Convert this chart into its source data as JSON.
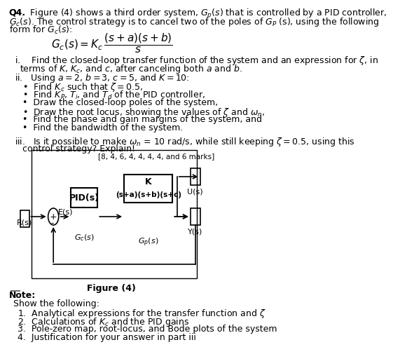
{
  "title_text": "Q4.  Figure (4) shows a third order system, $G_p(s)$ that is controlled by a PID controller,\n$G_c(s)$. The control strategy is to cancel two of the poles of $G_P$ (s), using the following\nform for $G_c(s)$:",
  "formula": "$G_c(s) = K_c \\dfrac{(s+a)(s+b)}{s}$",
  "part_i": "i.    Find the closed-loop transfer function of the system and an expression for $\\zeta$, in\n       terms of $K$, $K_c$, and $c$, after canceling both $a$ and $b$.",
  "part_ii": "ii.   Using $a = 2$, $b = 3$, $c = 5$, and $K = 10$:",
  "bullets_ii": [
    "Find $K_c$ such that $\\zeta = 0.5$,",
    "Find $K_P$, $T_i$, and $T_d$ of the PID controller,",
    "Draw the closed-loop poles of the system,",
    "Draw the root locus, showing the values of $\\zeta$ and $\\omega_n$,",
    "Find the phase and gain margins of the system, and",
    "Find the bandwidth of the system."
  ],
  "part_iii": "iii.   Is it possible to make $\\omega_n$ = 10 rad/s, while still keeping $\\zeta = 0.5$, using this\n       control strategy? Explain!",
  "marks": "[8, 4, 6, 4, 4, 4, 4, and 6 marks]",
  "figure_label": "Figure (4)",
  "note_title": "Note:",
  "note_subtitle": "Show the following:",
  "note_items": [
    "Analytical expressions for the transfer function and $\\zeta$",
    "Calculations of $K_c$ and the PID gains",
    "Pole-zero map, root-locus, and Bode plots of the system",
    "Justification for your answer in part iii"
  ],
  "bg_color": "#ffffff",
  "text_color": "#000000",
  "fontsize_main": 9,
  "fontsize_formula": 11
}
